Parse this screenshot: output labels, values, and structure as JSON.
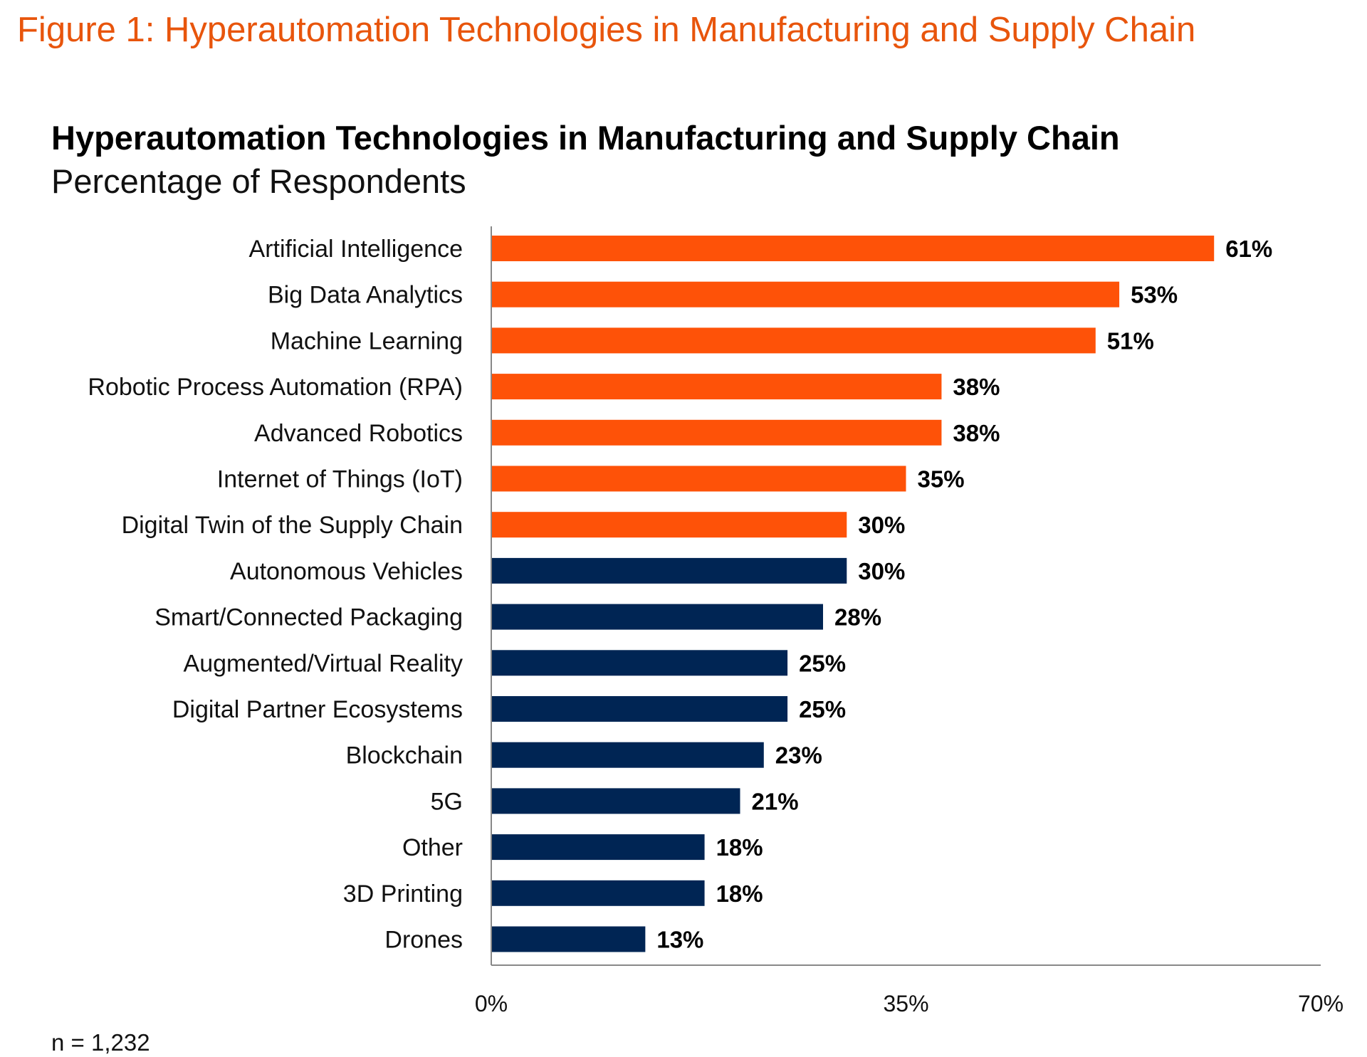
{
  "figure_caption": "Figure 1: Hyperautomation Technologies in Manufacturing and Supply Chain",
  "sample_note": "n = 1,232",
  "chart_data": {
    "type": "bar",
    "orientation": "horizontal",
    "title": "Hyperautomation Technologies in Manufacturing and Supply Chain",
    "subtitle": "Percentage of Respondents",
    "xlabel": "",
    "ylabel": "",
    "xlim": [
      0,
      70
    ],
    "x_ticks": [
      0,
      35,
      70
    ],
    "x_tick_labels": [
      "0%",
      "35%",
      "70%"
    ],
    "grid": false,
    "categories": [
      "Artificial Intelligence",
      "Big Data Analytics",
      "Machine Learning",
      "Robotic Process Automation (RPA)",
      "Advanced Robotics",
      "Internet of Things (IoT)",
      "Digital Twin of the Supply Chain",
      "Autonomous Vehicles",
      "Smart/Connected Packaging",
      "Augmented/Virtual Reality",
      "Digital Partner Ecosystems",
      "Blockchain",
      "5G",
      "Other",
      "3D Printing",
      "Drones"
    ],
    "values": [
      61,
      53,
      51,
      38,
      38,
      35,
      30,
      30,
      28,
      25,
      25,
      23,
      21,
      18,
      18,
      13
    ],
    "value_labels": [
      "61%",
      "53%",
      "51%",
      "38%",
      "38%",
      "35%",
      "30%",
      "30%",
      "28%",
      "25%",
      "25%",
      "23%",
      "21%",
      "18%",
      "18%",
      "13%"
    ],
    "bar_colors": [
      "#fe5208",
      "#fe5208",
      "#fe5208",
      "#fe5208",
      "#fe5208",
      "#fe5208",
      "#fe5208",
      "#002554",
      "#002554",
      "#002554",
      "#002554",
      "#002554",
      "#002554",
      "#002554",
      "#002554",
      "#002554"
    ]
  },
  "colors": {
    "caption": "#e8550c",
    "highlight_bar": "#fe5208",
    "standard_bar": "#002554",
    "axis": "#888888"
  }
}
